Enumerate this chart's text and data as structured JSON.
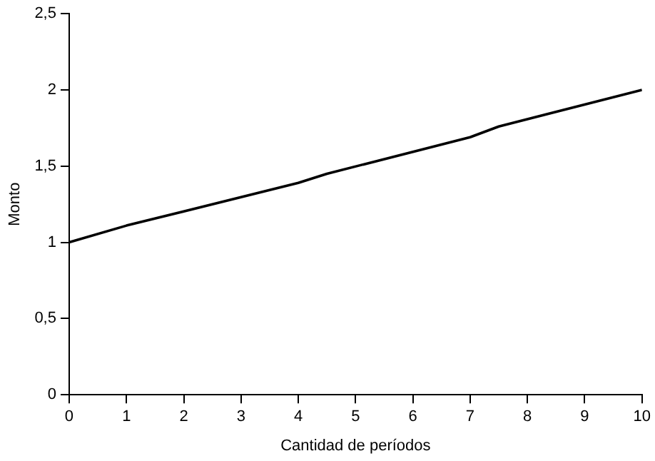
{
  "chart_data": {
    "type": "line",
    "xlabel": "Cantidad de períodos",
    "ylabel": "Monto",
    "x": [
      0,
      1,
      4,
      4.5,
      7,
      7.5,
      10
    ],
    "series": [
      {
        "color": "#000000",
        "values": [
          1,
          1.11,
          1.39,
          1.45,
          1.69,
          1.76,
          2
        ]
      }
    ],
    "xlim": [
      0,
      10
    ],
    "xticks": [
      0,
      1,
      2,
      3,
      4,
      5,
      6,
      7,
      8,
      9,
      10
    ],
    "ylim": [
      0,
      2.5
    ],
    "yticks": [
      0,
      {
        "value": 0.5,
        "label": "0,5"
      },
      1,
      {
        "value": 1.5,
        "label": "1,5"
      },
      2,
      {
        "value": 2.5,
        "label": "2,5"
      }
    ],
    "grid": false,
    "legend": false,
    "marker": "none",
    "line_style": "solid"
  }
}
